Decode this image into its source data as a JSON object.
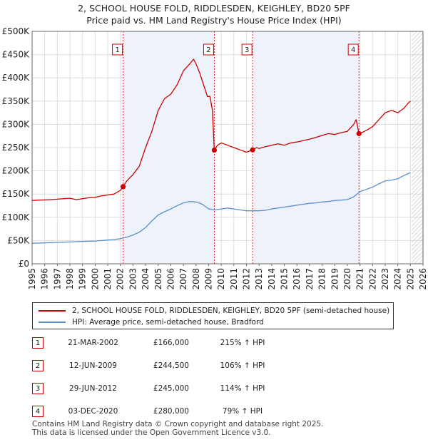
{
  "title": {
    "line1": "2, SCHOOL HOUSE FOLD, RIDDLESDEN, KEIGHLEY, BD20 5PF",
    "line2": "Price paid vs. HM Land Registry's House Price Index (HPI)"
  },
  "legend": {
    "items": [
      {
        "label": "2, SCHOOL HOUSE FOLD, RIDDLESDEN, KEIGHLEY, BD20 5PF (semi-detached house)",
        "color": "#cc0000"
      },
      {
        "label": "HPI: Average price, semi-detached house, Bradford",
        "color": "#5b8fc9"
      }
    ]
  },
  "transactions": [
    {
      "num": "1",
      "date": "21-MAR-2002",
      "price": "£166,000",
      "hpi": "215% ↑ HPI"
    },
    {
      "num": "2",
      "date": "12-JUN-2009",
      "price": "£244,500",
      "hpi": "106% ↑ HPI"
    },
    {
      "num": "3",
      "date": "29-JUN-2012",
      "price": "£245,000",
      "hpi": "114% ↑ HPI"
    },
    {
      "num": "4",
      "date": "03-DEC-2020",
      "price": "£280,000",
      "hpi": "79% ↑ HPI"
    }
  ],
  "footer": {
    "line1": "Contains HM Land Registry data © Crown copyright and database right 2025.",
    "line2": "This data is licensed under the Open Government Licence v3.0."
  },
  "chart_data": {
    "type": "line",
    "xlim": [
      1995,
      2026
    ],
    "ylim": [
      0,
      500000
    ],
    "yticks": [
      0,
      50000,
      100000,
      150000,
      200000,
      250000,
      300000,
      350000,
      400000,
      450000,
      500000
    ],
    "ytick_labels": [
      "£0",
      "£50K",
      "£100K",
      "£150K",
      "£200K",
      "£250K",
      "£300K",
      "£350K",
      "£400K",
      "£450K",
      "£500K"
    ],
    "xticks": [
      1995,
      1996,
      1997,
      1998,
      1999,
      2000,
      2001,
      2002,
      2003,
      2004,
      2005,
      2006,
      2007,
      2008,
      2009,
      2010,
      2011,
      2012,
      2013,
      2014,
      2015,
      2016,
      2017,
      2018,
      2019,
      2020,
      2021,
      2022,
      2023,
      2024,
      2025,
      2026
    ],
    "grid": true,
    "shaded_ranges": [
      [
        2002.22,
        2009.45
      ],
      [
        2012.49,
        2020.92
      ]
    ],
    "future_hatch_from": 2025.1,
    "grid_color": "#dddddd",
    "plot_bg": "#eef2fb",
    "series": [
      {
        "name": "2, SCHOOL HOUSE FOLD, RIDDLESDEN, KEIGHLEY, BD20 5PF (semi-detached house)",
        "color": "#cc0000",
        "x": [
          1995.0,
          1995.5,
          1996.0,
          1996.5,
          1997.0,
          1997.5,
          1998.0,
          1998.5,
          1999.0,
          1999.5,
          2000.0,
          2000.5,
          2001.0,
          2001.5,
          2002.0,
          2002.22,
          2002.5,
          2003.0,
          2003.5,
          2004.0,
          2004.5,
          2005.0,
          2005.5,
          2006.0,
          2006.5,
          2007.0,
          2007.5,
          2007.8,
          2008.0,
          2008.3,
          2008.6,
          2008.9,
          2009.1,
          2009.3,
          2009.45,
          2009.7,
          2010.0,
          2010.5,
          2011.0,
          2011.5,
          2012.0,
          2012.49,
          2012.8,
          2013.0,
          2013.5,
          2014.0,
          2014.5,
          2015.0,
          2015.5,
          2016.0,
          2016.5,
          2017.0,
          2017.5,
          2018.0,
          2018.5,
          2019.0,
          2019.5,
          2020.0,
          2020.5,
          2020.7,
          2020.92,
          2021.2,
          2021.5,
          2022.0,
          2022.5,
          2023.0,
          2023.5,
          2024.0,
          2024.5,
          2024.8,
          2025.0
        ],
        "y": [
          136000,
          137000,
          137500,
          138000,
          139000,
          140000,
          141000,
          138000,
          140000,
          142000,
          143000,
          146000,
          148000,
          150000,
          158000,
          166000,
          178000,
          192000,
          210000,
          250000,
          285000,
          330000,
          355000,
          365000,
          385000,
          415000,
          430000,
          440000,
          430000,
          410000,
          385000,
          360000,
          360000,
          330000,
          244500,
          255000,
          260000,
          255000,
          250000,
          245000,
          240000,
          245000,
          250000,
          248000,
          252000,
          255000,
          258000,
          255000,
          260000,
          262000,
          265000,
          268000,
          272000,
          276000,
          280000,
          278000,
          282000,
          285000,
          300000,
          310000,
          280000,
          283000,
          287000,
          295000,
          310000,
          325000,
          330000,
          325000,
          335000,
          345000,
          350000
        ]
      },
      {
        "name": "HPI: Average price, semi-detached house, Bradford",
        "color": "#5b8fc9",
        "x": [
          1995.0,
          1995.5,
          1996.0,
          1996.5,
          1997.0,
          1997.5,
          1998.0,
          1998.5,
          1999.0,
          1999.5,
          2000.0,
          2000.5,
          2001.0,
          2001.5,
          2002.0,
          2002.5,
          2003.0,
          2003.5,
          2004.0,
          2004.5,
          2005.0,
          2005.5,
          2006.0,
          2006.5,
          2007.0,
          2007.5,
          2008.0,
          2008.5,
          2009.0,
          2009.5,
          2010.0,
          2010.5,
          2011.0,
          2011.5,
          2012.0,
          2012.5,
          2013.0,
          2013.5,
          2014.0,
          2014.5,
          2015.0,
          2015.5,
          2016.0,
          2016.5,
          2017.0,
          2017.5,
          2018.0,
          2018.5,
          2019.0,
          2019.5,
          2020.0,
          2020.5,
          2021.0,
          2021.5,
          2022.0,
          2022.5,
          2023.0,
          2023.5,
          2024.0,
          2024.5,
          2025.0
        ],
        "y": [
          44000,
          44500,
          45000,
          45500,
          46000,
          46500,
          47000,
          47500,
          48000,
          48500,
          49000,
          50000,
          51000,
          52000,
          54000,
          57000,
          62000,
          68000,
          78000,
          92000,
          105000,
          112000,
          118000,
          125000,
          131000,
          134000,
          133000,
          128000,
          118000,
          116000,
          118000,
          120000,
          118000,
          116000,
          114000,
          114000,
          114000,
          115000,
          118000,
          120000,
          122000,
          124000,
          126000,
          128000,
          130000,
          131000,
          133000,
          134000,
          136000,
          137000,
          138000,
          144000,
          155000,
          160000,
          165000,
          172000,
          178000,
          180000,
          183000,
          190000,
          196000
        ]
      }
    ],
    "markers": [
      {
        "label": "1",
        "x": 2002.22,
        "y": 166000
      },
      {
        "label": "2",
        "x": 2009.45,
        "y": 244500
      },
      {
        "label": "3",
        "x": 2012.49,
        "y": 245000
      },
      {
        "label": "4",
        "x": 2020.92,
        "y": 280000
      }
    ]
  }
}
